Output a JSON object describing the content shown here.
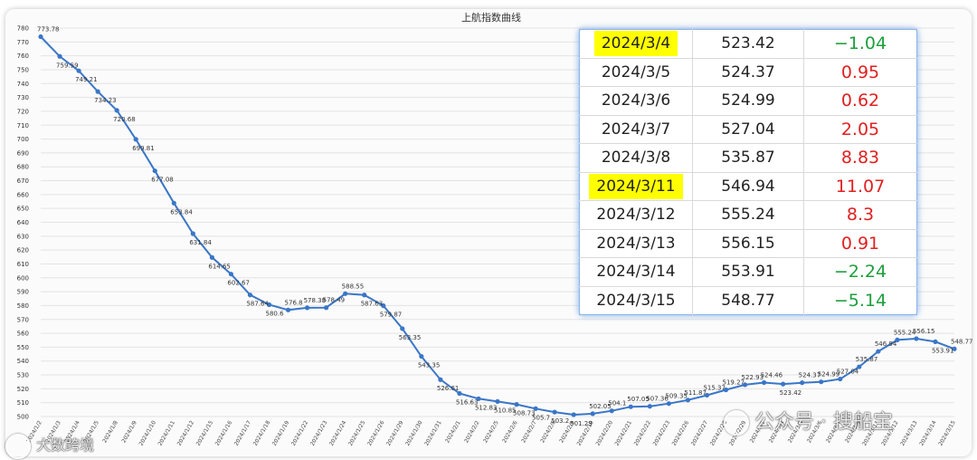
{
  "chart_data": {
    "type": "line",
    "title": "上航指数曲线",
    "ylim": [
      500,
      780
    ],
    "yticks": [
      500,
      510,
      520,
      530,
      540,
      550,
      560,
      570,
      580,
      590,
      600,
      610,
      620,
      630,
      640,
      650,
      660,
      670,
      680,
      690,
      700,
      710,
      720,
      730,
      740,
      750,
      760,
      770,
      780
    ],
    "grid": true,
    "color": "#3a76c8",
    "points": [
      {
        "x": "2024/1/2",
        "y": 773.78
      },
      {
        "x": "2024/1/3",
        "y": 759.59
      },
      {
        "x": "2024/1/4",
        "y": 749.21
      },
      {
        "x": "2024/1/5",
        "y": 734.23
      },
      {
        "x": "2024/1/8",
        "y": 720.68
      },
      {
        "x": "2024/1/9",
        "y": 699.81
      },
      {
        "x": "2024/1/10",
        "y": 677.08
      },
      {
        "x": "2024/1/11",
        "y": 653.84
      },
      {
        "x": "2024/1/12",
        "y": 631.84
      },
      {
        "x": "2024/1/15",
        "y": 614.65
      },
      {
        "x": "2024/1/16",
        "y": 602.67
      },
      {
        "x": "2024/1/17",
        "y": 587.64
      },
      {
        "x": "2024/1/18",
        "y": 580.6
      },
      {
        "x": "2024/1/19",
        "y": 576.8
      },
      {
        "x": "2024/1/22",
        "y": 578.38
      },
      {
        "x": "2024/1/23",
        "y": 578.49
      },
      {
        "x": "2024/1/24",
        "y": 588.55
      },
      {
        "x": "2024/1/25",
        "y": 587.63
      },
      {
        "x": "2024/1/26",
        "y": 579.87
      },
      {
        "x": "2024/1/29",
        "y": 563.35
      },
      {
        "x": "2024/1/30",
        "y": 543.35
      },
      {
        "x": "2024/1/31",
        "y": 526.61
      },
      {
        "x": "2024/2/1",
        "y": 516.63
      },
      {
        "x": "2024/2/2",
        "y": 512.83
      },
      {
        "x": "2024/2/5",
        "y": 510.85
      },
      {
        "x": "2024/2/6",
        "y": 508.73
      },
      {
        "x": "2024/2/7",
        "y": 505.7
      },
      {
        "x": "2024/2/8",
        "y": 503.2
      },
      {
        "x": "2024/2/9",
        "y": 501.29
      },
      {
        "x": "2024/2/19",
        "y": 502.05
      },
      {
        "x": "2024/2/20",
        "y": 504.1
      },
      {
        "x": "2024/2/21",
        "y": 507.05
      },
      {
        "x": "2024/2/22",
        "y": 507.36
      },
      {
        "x": "2024/2/23",
        "y": 509.35
      },
      {
        "x": "2024/2/26",
        "y": 511.87
      },
      {
        "x": "2024/2/27",
        "y": 515.37
      },
      {
        "x": "2024/2/28",
        "y": 519.27
      },
      {
        "x": "2024/2/29",
        "y": 522.93
      },
      {
        "x": "2024/3/1",
        "y": 524.46
      },
      {
        "x": "2024/3/4",
        "y": 523.42
      },
      {
        "x": "2024/3/5",
        "y": 524.37
      },
      {
        "x": "2024/3/6",
        "y": 524.99
      },
      {
        "x": "2024/3/7",
        "y": 527.04
      },
      {
        "x": "2024/3/8",
        "y": 535.87
      },
      {
        "x": "2024/3/11",
        "y": 546.94
      },
      {
        "x": "2024/3/12",
        "y": 555.24
      },
      {
        "x": "2024/3/13",
        "y": 556.15
      },
      {
        "x": "2024/3/14",
        "y": 553.91
      },
      {
        "x": "2024/3/15",
        "y": 548.77
      }
    ]
  },
  "table": {
    "rows": [
      {
        "date": "2024/3/4",
        "value": "523.42",
        "change": "−1.04",
        "dir": "down",
        "highlight": true
      },
      {
        "date": "2024/3/5",
        "value": "524.37",
        "change": "0.95",
        "dir": "up",
        "highlight": false
      },
      {
        "date": "2024/3/6",
        "value": "524.99",
        "change": "0.62",
        "dir": "up",
        "highlight": false
      },
      {
        "date": "2024/3/7",
        "value": "527.04",
        "change": "2.05",
        "dir": "up",
        "highlight": false
      },
      {
        "date": "2024/3/8",
        "value": "535.87",
        "change": "8.83",
        "dir": "up",
        "highlight": false
      },
      {
        "date": "2024/3/11",
        "value": "546.94",
        "change": "11.07",
        "dir": "up",
        "highlight": true
      },
      {
        "date": "2024/3/12",
        "value": "555.24",
        "change": "8.3",
        "dir": "up",
        "highlight": false
      },
      {
        "date": "2024/3/13",
        "value": "556.15",
        "change": "0.91",
        "dir": "up",
        "highlight": false
      },
      {
        "date": "2024/3/14",
        "value": "553.91",
        "change": "−2.24",
        "dir": "down",
        "highlight": false
      },
      {
        "date": "2024/3/15",
        "value": "548.77",
        "change": "−5.14",
        "dir": "down",
        "highlight": false
      }
    ],
    "up_color": "#e02020",
    "down_color": "#1e9e3c",
    "highlight_color": "#ffff00"
  },
  "watermarks": {
    "left": "大数跨境",
    "right": "公众号 · 搜船宝"
  }
}
